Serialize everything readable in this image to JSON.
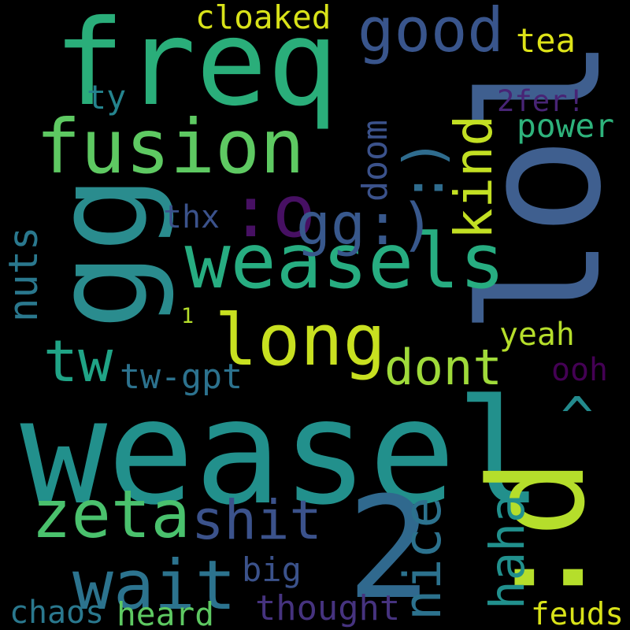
{
  "background": "#000000",
  "words": [
    {
      "text": "weasel",
      "color": "#22908c",
      "rotated": false
    },
    {
      "text": "lol",
      "color": "#3f5f8f",
      "rotated": true
    },
    {
      "text": "freq",
      "color": "#2aae7a",
      "rotated": false
    },
    {
      "text": "gg",
      "color": "#2a8c8e",
      "rotated": true
    },
    {
      "text": "fusion",
      "color": "#5ec962",
      "rotated": false
    },
    {
      "text": "weasels",
      "color": "#27ad81",
      "rotated": false
    },
    {
      "text": ":d",
      "color": "#b5de2b",
      "rotated": true
    },
    {
      "text": "long",
      "color": "#c8e020",
      "rotated": false
    },
    {
      "text": "2",
      "color": "#30698e",
      "rotated": false
    },
    {
      "text": "wait",
      "color": "#2c738e",
      "rotated": false
    },
    {
      "text": "zeta",
      "color": "#4ac16d",
      "rotated": false
    },
    {
      "text": "good",
      "color": "#39558c",
      "rotated": false
    },
    {
      "text": ":o",
      "color": "#471063",
      "rotated": false
    },
    {
      "text": "shit",
      "color": "#3b528b",
      "rotated": false
    },
    {
      "text": "tw",
      "color": "#20a486",
      "rotated": false
    },
    {
      "text": "dont",
      "color": "#9fda3a",
      "rotated": false
    },
    {
      "text": "nice",
      "color": "#2c728e",
      "rotated": true
    },
    {
      "text": "doom",
      "color": "#3b528b",
      "rotated": true
    },
    {
      "text": ":)",
      "color": "#2f6c8e",
      "rotated": true
    },
    {
      "text": "gg:)",
      "color": "#38588c",
      "rotated": false
    },
    {
      "text": "kind",
      "color": "#c2df23",
      "rotated": true
    },
    {
      "text": "^",
      "color": "#238a8d",
      "rotated": false
    },
    {
      "text": "haha",
      "color": "#21908d",
      "rotated": true
    },
    {
      "text": "nuts",
      "color": "#2a788e",
      "rotated": true
    },
    {
      "text": "cloaked",
      "color": "#d8e219",
      "rotated": false
    },
    {
      "text": "tea",
      "color": "#dde318",
      "rotated": false
    },
    {
      "text": "ty",
      "color": "#25848e",
      "rotated": false
    },
    {
      "text": "2fer!",
      "color": "#482475",
      "rotated": false
    },
    {
      "text": "power",
      "color": "#2eb37c",
      "rotated": false
    },
    {
      "text": "thx",
      "color": "#3b528b",
      "rotated": false
    },
    {
      "text": "1",
      "color": "#b5de2b",
      "rotated": false
    },
    {
      "text": "yeah",
      "color": "#b5de2b",
      "rotated": false
    },
    {
      "text": "tw-gpt",
      "color": "#2c728e",
      "rotated": false
    },
    {
      "text": "ooh",
      "color": "#440154",
      "rotated": false
    },
    {
      "text": "big",
      "color": "#3b528b",
      "rotated": false
    },
    {
      "text": "thought",
      "color": "#46337f",
      "rotated": false
    },
    {
      "text": "chaos",
      "color": "#2a788e",
      "rotated": false
    },
    {
      "text": "heard",
      "color": "#5ec962",
      "rotated": false
    },
    {
      "text": "feuds",
      "color": "#d8e219",
      "rotated": false
    }
  ]
}
